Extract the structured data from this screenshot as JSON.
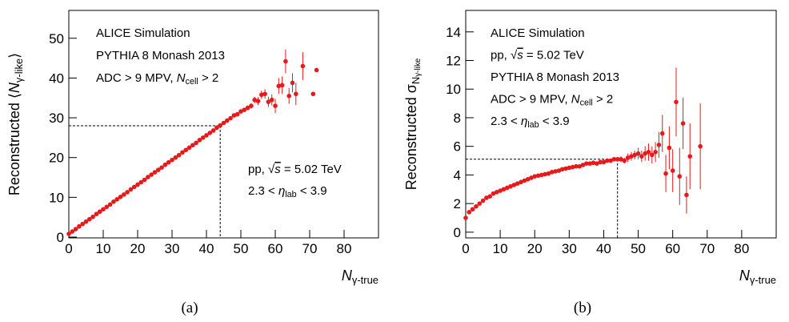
{
  "chart_data": [
    {
      "type": "scatter",
      "caption": "(a)",
      "color": "#e8191b",
      "y_label": [
        {
          "text": "Reconstructed ⟨"
        },
        {
          "text": "N",
          "style": "italic"
        },
        {
          "text": "γ-like",
          "style": "sub"
        },
        {
          "text": "⟩"
        }
      ],
      "x_label": [
        {
          "text": "N",
          "style": "italic"
        },
        {
          "text": "γ-true",
          "style": "sub"
        }
      ],
      "annotations": [
        [
          [
            {
              "text": "ALICE Simulation"
            }
          ],
          [
            {
              "text": "PYTHIA 8 Monash 2013"
            }
          ],
          [
            {
              "text": "ADC > 9 MPV, "
            },
            {
              "text": "N",
              "style": "italic"
            },
            {
              "text": "cell",
              "style": "sub"
            },
            {
              "text": " > 2"
            }
          ]
        ],
        [
          [
            {
              "text": "pp, √"
            },
            {
              "text": "s",
              "style": "over"
            },
            {
              "text": " = 5.02 TeV"
            }
          ],
          [
            {
              "text": "2.3 < "
            },
            {
              "text": "η",
              "style": "italic"
            },
            {
              "text": "lab",
              "style": "sub"
            },
            {
              "text": " < 3.9"
            }
          ]
        ]
      ],
      "guide": {
        "x": 44,
        "y": 28
      },
      "xlim": [
        0,
        90
      ],
      "xticks": [
        0,
        10,
        20,
        30,
        40,
        50,
        60,
        70,
        80
      ],
      "ylim": [
        -0.2,
        57
      ],
      "yticks": [
        0,
        10,
        20,
        30,
        40,
        50
      ],
      "x": [
        0,
        1,
        2,
        3,
        4,
        5,
        6,
        7,
        8,
        9,
        10,
        11,
        12,
        13,
        14,
        15,
        16,
        17,
        18,
        19,
        20,
        21,
        22,
        23,
        24,
        25,
        26,
        27,
        28,
        29,
        30,
        31,
        32,
        33,
        34,
        35,
        36,
        37,
        38,
        39,
        40,
        41,
        42,
        43,
        44,
        45,
        46,
        47,
        48,
        49,
        50,
        51,
        52,
        53,
        54,
        55,
        56,
        57,
        58,
        59,
        60,
        61,
        62,
        63,
        64,
        65,
        66,
        68,
        71,
        72
      ],
      "values": [
        0.8,
        1.4,
        2.0,
        2.7,
        3.3,
        3.9,
        4.5,
        5.1,
        5.8,
        6.4,
        7.0,
        7.6,
        8.2,
        8.9,
        9.5,
        10.1,
        10.7,
        11.3,
        12.0,
        12.6,
        13.2,
        13.8,
        14.4,
        15.1,
        15.7,
        16.3,
        16.9,
        17.5,
        18.2,
        18.8,
        19.4,
        20.0,
        20.6,
        21.3,
        21.9,
        22.5,
        23.1,
        23.7,
        24.4,
        25.0,
        25.6,
        26.2,
        26.8,
        27.5,
        28.1,
        28.7,
        29.3,
        29.9,
        30.6,
        30.9,
        31.6,
        32.0,
        32.5,
        33.0,
        34.5,
        34.2,
        35.8,
        36.0,
        34.0,
        34.5,
        33.0,
        38.0,
        38.2,
        44.2,
        35.5,
        38.8,
        36.0,
        43.0,
        36.0,
        42.0
      ],
      "errors": [
        0.1,
        0.1,
        0.1,
        0.1,
        0.1,
        0.1,
        0.1,
        0.1,
        0.1,
        0.1,
        0.1,
        0.1,
        0.1,
        0.1,
        0.1,
        0.1,
        0.1,
        0.1,
        0.1,
        0.1,
        0.1,
        0.1,
        0.1,
        0.1,
        0.1,
        0.1,
        0.1,
        0.1,
        0.1,
        0.1,
        0.1,
        0.1,
        0.1,
        0.1,
        0.2,
        0.2,
        0.2,
        0.2,
        0.2,
        0.2,
        0.2,
        0.2,
        0.2,
        0.3,
        0.3,
        0.3,
        0.3,
        0.3,
        0.4,
        0.4,
        0.5,
        0.5,
        0.6,
        0.7,
        0.8,
        1.0,
        1.0,
        1.2,
        1.3,
        1.4,
        1.8,
        2.0,
        2.2,
        3.0,
        2.0,
        2.4,
        2.8,
        3.5,
        0,
        0
      ]
    },
    {
      "type": "scatter",
      "caption": "(b)",
      "color": "#e8191b",
      "y_label": [
        {
          "text": "Reconstructed σ"
        },
        {
          "text": "N",
          "style": "sub"
        },
        {
          "text": "γ-like",
          "style": "sub2"
        }
      ],
      "x_label": [
        {
          "text": "N",
          "style": "italic"
        },
        {
          "text": "γ-true",
          "style": "sub"
        }
      ],
      "annotations": [
        [
          [
            {
              "text": "ALICE Simulation"
            }
          ],
          [
            {
              "text": "pp, √"
            },
            {
              "text": "s",
              "style": "over"
            },
            {
              "text": " = 5.02 TeV"
            }
          ],
          [
            {
              "text": "PYTHIA 8 Monash 2013"
            }
          ],
          [
            {
              "text": "ADC > 9 MPV, "
            },
            {
              "text": "N",
              "style": "italic"
            },
            {
              "text": "cell",
              "style": "sub"
            },
            {
              "text": " > 2"
            }
          ],
          [
            {
              "text": "2.3 < "
            },
            {
              "text": "η",
              "style": "italic"
            },
            {
              "text": "lab",
              "style": "sub"
            },
            {
              "text": " < 3.9"
            }
          ]
        ]
      ],
      "guide": {
        "x": 44,
        "y": 5.1
      },
      "xlim": [
        0,
        90
      ],
      "xticks": [
        0,
        10,
        20,
        30,
        40,
        50,
        60,
        70,
        80
      ],
      "ylim": [
        -0.4,
        15.5
      ],
      "yticks": [
        0,
        2,
        4,
        6,
        8,
        10,
        12,
        14
      ],
      "x": [
        0,
        1,
        2,
        3,
        4,
        5,
        6,
        7,
        8,
        9,
        10,
        11,
        12,
        13,
        14,
        15,
        16,
        17,
        18,
        19,
        20,
        21,
        22,
        23,
        24,
        25,
        26,
        27,
        28,
        29,
        30,
        31,
        32,
        33,
        34,
        35,
        36,
        37,
        38,
        39,
        40,
        41,
        42,
        43,
        44,
        45,
        46,
        47,
        48,
        49,
        50,
        51,
        52,
        53,
        54,
        55,
        56,
        57,
        58,
        59,
        60,
        61,
        62,
        63,
        64,
        65,
        68
      ],
      "values": [
        1.0,
        1.4,
        1.6,
        1.8,
        2.0,
        2.2,
        2.4,
        2.5,
        2.7,
        2.8,
        2.9,
        3.0,
        3.1,
        3.2,
        3.3,
        3.4,
        3.5,
        3.6,
        3.7,
        3.8,
        3.9,
        3.95,
        4.0,
        4.05,
        4.1,
        4.2,
        4.25,
        4.3,
        4.4,
        4.45,
        4.5,
        4.55,
        4.6,
        4.6,
        4.7,
        4.8,
        4.8,
        4.85,
        4.8,
        4.9,
        4.9,
        5.0,
        5.0,
        5.1,
        5.1,
        5.1,
        5.0,
        5.2,
        5.3,
        5.4,
        5.5,
        5.3,
        5.5,
        5.6,
        5.4,
        5.6,
        6.1,
        6.9,
        4.1,
        5.9,
        4.3,
        9.1,
        3.9,
        7.6,
        2.6,
        5.3,
        6.0
      ],
      "errors": [
        0.1,
        0.1,
        0.1,
        0.1,
        0.1,
        0.1,
        0.1,
        0.1,
        0.1,
        0.1,
        0.1,
        0.1,
        0.1,
        0.1,
        0.1,
        0.1,
        0.1,
        0.1,
        0.1,
        0.1,
        0.1,
        0.1,
        0.1,
        0.1,
        0.1,
        0.1,
        0.1,
        0.1,
        0.1,
        0.1,
        0.1,
        0.1,
        0.1,
        0.1,
        0.1,
        0.1,
        0.1,
        0.1,
        0.1,
        0.1,
        0.1,
        0.1,
        0.1,
        0.1,
        0.1,
        0.2,
        0.2,
        0.3,
        0.3,
        0.3,
        0.4,
        0.4,
        0.5,
        0.6,
        0.6,
        0.7,
        0.9,
        1.3,
        1.3,
        1.5,
        1.5,
        2.4,
        2.0,
        1.8,
        1.3,
        2.3,
        3.0
      ]
    }
  ]
}
